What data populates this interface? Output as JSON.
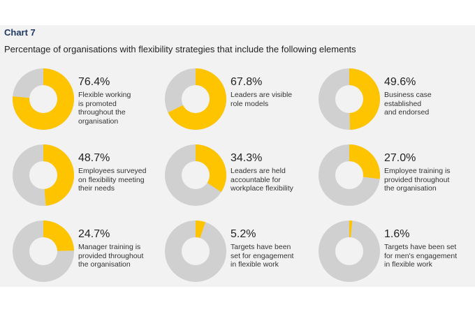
{
  "header": {
    "chart_label": "Chart 7",
    "title": "Percentage of organisations with flexibility strategies that include the following elements"
  },
  "colors": {
    "filled": "#ffc400",
    "remaining": "#d0d0d0",
    "panel": "#f2f2f2",
    "label": "#1f3864"
  },
  "chart_data": {
    "type": "pie",
    "variant": "donut-small-multiples",
    "items": [
      {
        "value": 76.4,
        "label": "76.4%",
        "text": "Flexible working\nis promoted\nthroughout the\norganisation"
      },
      {
        "value": 67.8,
        "label": "67.8%",
        "text": "Leaders are visible\nrole models"
      },
      {
        "value": 49.6,
        "label": "49.6%",
        "text": "Business case\nestablished\nand endorsed"
      },
      {
        "value": 48.7,
        "label": "48.7%",
        "text": "Employees surveyed\non flexibility meeting\ntheir needs"
      },
      {
        "value": 34.3,
        "label": "34.3%",
        "text": "Leaders are held\naccountable for\nworkplace flexibility"
      },
      {
        "value": 27.0,
        "label": "27.0%",
        "text": "Employee training is\nprovided throughout\nthe organisation"
      },
      {
        "value": 24.7,
        "label": "24.7%",
        "text": "Manager training is\nprovided throughout\nthe organisation"
      },
      {
        "value": 5.2,
        "label": "5.2%",
        "text": "Targets have been\nset for engagement\nin flexible work"
      },
      {
        "value": 1.6,
        "label": "1.6%",
        "text": "Targets have been set\nfor men's engagement\nin flexible work"
      }
    ]
  }
}
